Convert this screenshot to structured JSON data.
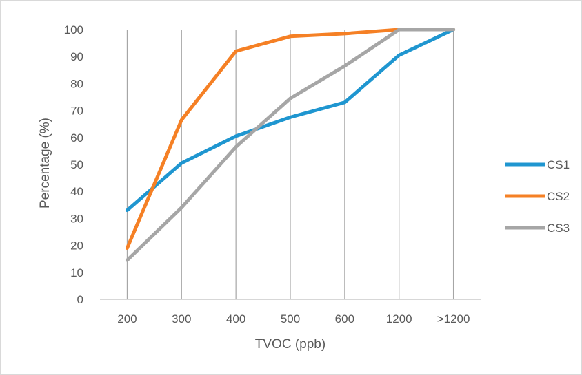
{
  "chart_data": {
    "type": "line",
    "title": "",
    "xlabel": "TVOC (ppb)",
    "ylabel": "Percentage (%)",
    "categories": [
      "200",
      "300",
      "400",
      "500",
      "600",
      "1200",
      ">1200"
    ],
    "ylim": [
      0,
      100
    ],
    "yticks": [
      "0",
      "10",
      "20",
      "30",
      "40",
      "50",
      "60",
      "70",
      "80",
      "90",
      "100"
    ],
    "grid": "vertical",
    "legend": "right",
    "series": [
      {
        "name": "CS1",
        "color": "#1f96d0",
        "values": [
          33,
          50.5,
          60.5,
          67.5,
          73,
          90.5,
          100
        ]
      },
      {
        "name": "CS2",
        "color": "#f58025",
        "values": [
          19,
          66.5,
          92,
          97.5,
          98.5,
          100,
          100
        ]
      },
      {
        "name": "CS3",
        "color": "#a6a6a6",
        "values": [
          14.5,
          34,
          56.5,
          74.5,
          86.5,
          100,
          100
        ]
      }
    ]
  }
}
